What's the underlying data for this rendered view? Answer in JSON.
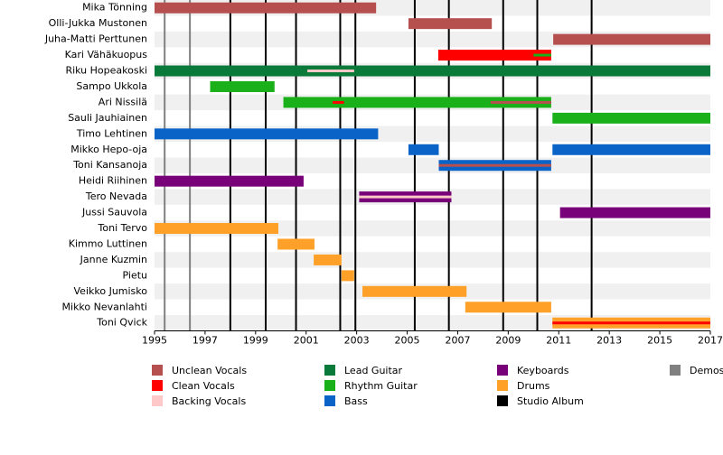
{
  "chart_data": {
    "type": "timeline",
    "categories": [
      "Mika Tönning",
      "Olli-Jukka Mustonen",
      "Juha-Matti Perttunen",
      "Kari Vähäkuopus",
      "Riku Hopeakoski",
      "Sampo Ukkola",
      "Ari Nissilä",
      "Sauli Jauhiainen",
      "Timo Lehtinen",
      "Mikko Hepo-oja",
      "Toni Kansanoja",
      "Heidi Riihinen",
      "Tero Nevada",
      "Jussi Sauvola",
      "Toni Tervo",
      "Kimmo Luttinen",
      "Janne Kuzmin",
      "Pietu",
      "Veikko Jumisko",
      "Mikko Nevanlahti",
      "Toni Qvick"
    ],
    "xlim": [
      1995,
      2017
    ],
    "xticks": [
      1995,
      1997,
      1999,
      2001,
      2003,
      2005,
      2007,
      2009,
      2011,
      2013,
      2015,
      2017
    ],
    "series": [
      {
        "name": "Unclean Vocals",
        "color": "#b5504f",
        "bars": [
          {
            "member": "Mika Tönning",
            "start": 1995,
            "end": 2003.77
          },
          {
            "member": "Olli-Jukka Mustonen",
            "start": 2005.05,
            "end": 2008.35
          },
          {
            "member": "Juha-Matti Perttunen",
            "start": 2010.78,
            "end": 2017
          },
          {
            "member": "Ari Nissilä",
            "start": 2008.3,
            "end": 2010.7,
            "thin": true
          },
          {
            "member": "Toni Kansanoja",
            "start": 2006.25,
            "end": 2010.7,
            "thin": true
          }
        ]
      },
      {
        "name": "Clean Vocals",
        "color": "#ff0000",
        "bars": [
          {
            "member": "Kari Vähäkuopus",
            "start": 2006.23,
            "end": 2010.7
          },
          {
            "member": "Ari Nissilä",
            "start": 2002.05,
            "end": 2002.5,
            "thin": true
          },
          {
            "member": "Toni Qvick",
            "start": 2010.75,
            "end": 2017,
            "thin": true
          }
        ]
      },
      {
        "name": "Backing Vocals",
        "color": "#ffc8c8",
        "bars": [
          {
            "member": "Riku Hopeakoski",
            "start": 2001.05,
            "end": 2002.9,
            "thin": true
          },
          {
            "member": "Tero Nevada",
            "start": 2003.1,
            "end": 2006.75,
            "thin": true
          }
        ]
      },
      {
        "name": "Lead Guitar",
        "color": "#0a7a3a",
        "bars": [
          {
            "member": "Riku Hopeakoski",
            "start": 1995,
            "end": 2017
          }
        ]
      },
      {
        "name": "Rhythm Guitar",
        "color": "#19b019",
        "bars": [
          {
            "member": "Kari Vähäkuopus",
            "start": 2010.0,
            "end": 2010.7,
            "thin": true
          },
          {
            "member": "Sampo Ukkola",
            "start": 1997.2,
            "end": 1999.75
          },
          {
            "member": "Ari Nissilä",
            "start": 2000.1,
            "end": 2010.7
          },
          {
            "member": "Sauli Jauhiainen",
            "start": 2010.75,
            "end": 2017
          }
        ]
      },
      {
        "name": "Bass",
        "color": "#0a64c8",
        "bars": [
          {
            "member": "Timo Lehtinen",
            "start": 1995,
            "end": 2003.85
          },
          {
            "member": "Mikko Hepo-oja",
            "start": 2005.05,
            "end": 2006.25
          },
          {
            "member": "Mikko Hepo-oja",
            "start": 2010.75,
            "end": 2017
          },
          {
            "member": "Toni Kansanoja",
            "start": 2006.25,
            "end": 2010.7
          }
        ]
      },
      {
        "name": "Keyboards",
        "color": "#780078",
        "bars": [
          {
            "member": "Heidi Riihinen",
            "start": 1995,
            "end": 2000.9
          },
          {
            "member": "Tero Nevada",
            "start": 2003.1,
            "end": 2006.75
          },
          {
            "member": "Jussi Sauvola",
            "start": 2011.05,
            "end": 2017
          }
        ]
      },
      {
        "name": "Drums",
        "color": "#ffa028",
        "bars": [
          {
            "member": "Toni Tervo",
            "start": 1995,
            "end": 1999.9
          },
          {
            "member": "Kimmo Luttinen",
            "start": 1999.87,
            "end": 2001.33
          },
          {
            "member": "Janne Kuzmin",
            "start": 2001.3,
            "end": 2002.4
          },
          {
            "member": "Pietu",
            "start": 2002.4,
            "end": 2002.9
          },
          {
            "member": "Veikko Jumisko",
            "start": 2003.23,
            "end": 2007.35
          },
          {
            "member": "Mikko Nevanlahti",
            "start": 2007.3,
            "end": 2010.7
          },
          {
            "member": "Toni Qvick",
            "start": 2010.75,
            "end": 2017
          }
        ]
      }
    ],
    "events": [
      {
        "name": "Studio Album",
        "color": "#000000",
        "x": [
          1998.0,
          1999.4,
          2000.6,
          2002.35,
          2002.95,
          2005.3,
          2006.65,
          2008.8,
          2010.15,
          2012.3
        ]
      },
      {
        "name": "Demos",
        "color": "#808080",
        "x": [
          1995.4,
          1996.4
        ]
      }
    ]
  }
}
